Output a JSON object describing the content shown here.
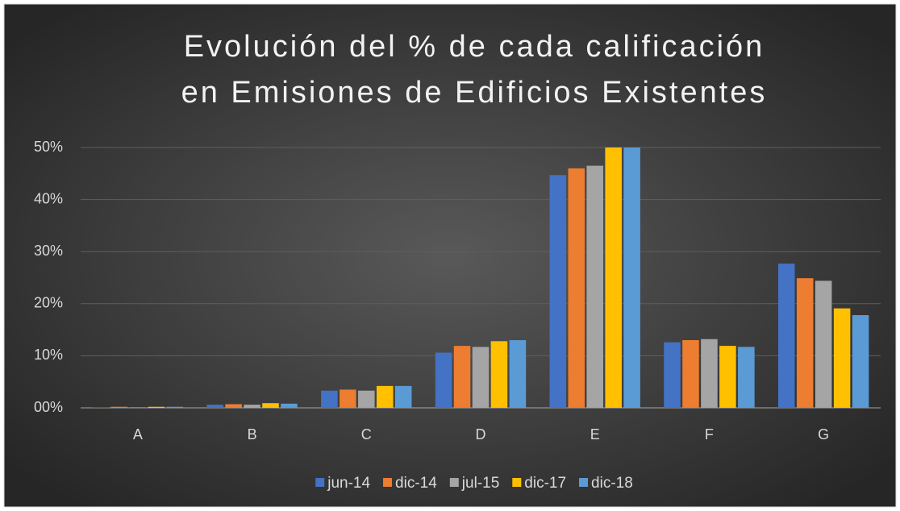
{
  "chart_data": {
    "type": "bar",
    "title": [
      "Evolución del % de cada calificación",
      "en Emisiones de Edificios Existentes"
    ],
    "categories": [
      "A",
      "B",
      "C",
      "D",
      "E",
      "F",
      "G"
    ],
    "series": [
      {
        "name": "jun-14",
        "color": "#4472c4",
        "values": [
          0.1,
          0.6,
          3.3,
          10.6,
          44.7,
          12.6,
          27.7
        ]
      },
      {
        "name": "dic-14",
        "color": "#ed7d31",
        "values": [
          0.2,
          0.7,
          3.5,
          11.9,
          46.0,
          13.0,
          24.9
        ]
      },
      {
        "name": "jul-15",
        "color": "#a5a5a5",
        "values": [
          0.1,
          0.6,
          3.3,
          11.7,
          46.5,
          13.2,
          24.4
        ]
      },
      {
        "name": "dic-17",
        "color": "#ffc000",
        "values": [
          0.2,
          0.9,
          4.2,
          12.8,
          50,
          11.9,
          19.1
        ]
      },
      {
        "name": "dic-18",
        "color": "#5b9bd5",
        "values": [
          0.2,
          0.8,
          4.2,
          13.0,
          50,
          11.7,
          17.8
        ]
      }
    ],
    "ylim": [
      0,
      50
    ],
    "yticks": [
      {
        "value": 0,
        "label": "00%"
      },
      {
        "value": 10,
        "label": "10%"
      },
      {
        "value": 20,
        "label": "20%"
      },
      {
        "value": 30,
        "label": "30%"
      },
      {
        "value": 40,
        "label": "40%"
      },
      {
        "value": 50,
        "label": "50%"
      }
    ],
    "grid": true,
    "legend": "bottom"
  }
}
